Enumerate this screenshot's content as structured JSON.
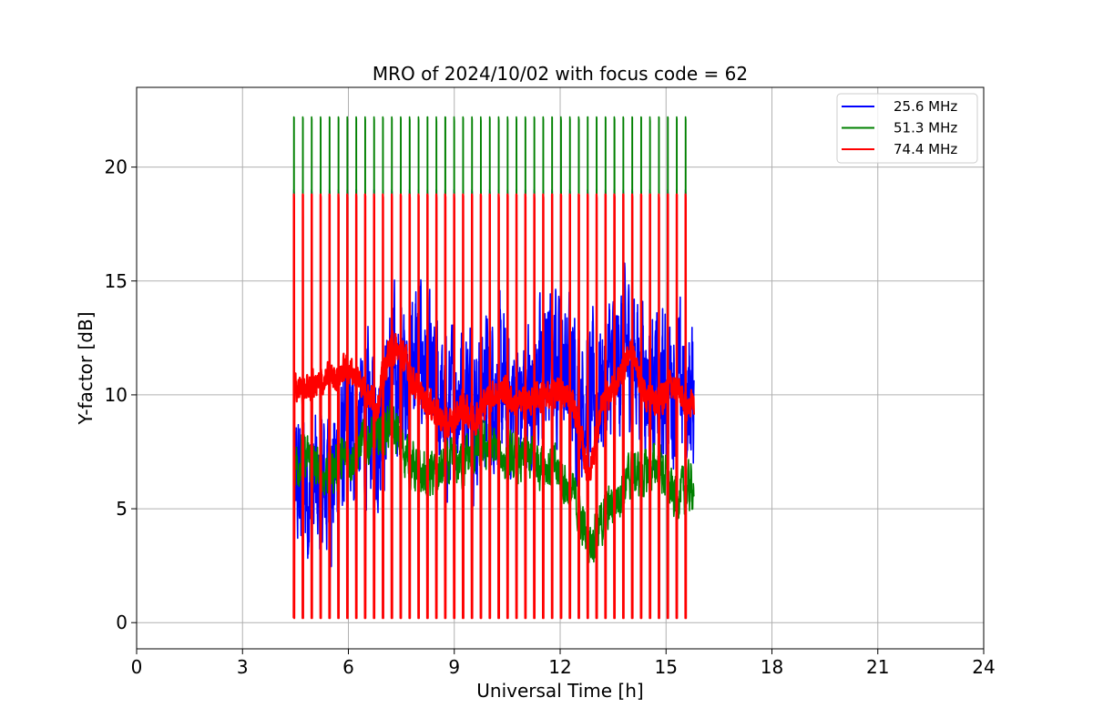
{
  "chart_data": {
    "type": "line",
    "title": "MRO of 2024/10/02 with focus code = 62",
    "xlabel": "Universal Time [h]",
    "ylabel": "Y-factor [dB]",
    "xlim": [
      0,
      24
    ],
    "ylim": [
      -1.15,
      23.5
    ],
    "x_ticks": [
      0,
      3,
      6,
      9,
      12,
      15,
      18,
      21,
      24
    ],
    "y_ticks": [
      0,
      5,
      10,
      15,
      20
    ],
    "grid": true,
    "legend_position": "top-right",
    "data_start_hour": 4.45,
    "data_end_hour": 15.8,
    "calibration_cycle_count": 45,
    "series": [
      {
        "name": "25.6 MHz",
        "color": "#0000ff",
        "baseline": {
          "x": [
            4.45,
            4.8,
            5.2,
            5.6,
            6.0,
            6.4,
            6.8,
            7.2,
            7.6,
            8.0,
            8.4,
            8.8,
            9.2,
            9.6,
            10.0,
            10.4,
            10.8,
            11.2,
            11.6,
            12.0,
            12.4,
            12.8,
            13.2,
            13.6,
            14.0,
            14.4,
            14.8,
            15.2,
            15.6,
            15.8
          ],
          "y": [
            5.8,
            6.0,
            5.8,
            6.5,
            8.0,
            9.0,
            8.5,
            10.5,
            11.0,
            12.0,
            10.0,
            9.0,
            10.5,
            9.5,
            10.5,
            10.0,
            9.5,
            10.0,
            11.0,
            12.0,
            10.5,
            9.5,
            10.5,
            11.5,
            12.0,
            11.0,
            10.0,
            10.5,
            10.0,
            10.0
          ]
        },
        "noise_amplitude": 2.5,
        "cal_high": 19.0,
        "cal_low": 0.2
      },
      {
        "name": "51.3 MHz",
        "color": "#008000",
        "baseline": {
          "x": [
            4.45,
            4.8,
            5.2,
            5.6,
            6.0,
            6.4,
            6.8,
            7.2,
            7.6,
            8.0,
            8.4,
            8.8,
            9.2,
            9.6,
            10.0,
            10.4,
            10.8,
            11.2,
            11.6,
            12.0,
            12.4,
            12.8,
            13.2,
            13.6,
            14.0,
            14.4,
            14.8,
            15.2,
            15.6,
            15.8
          ],
          "y": [
            7.0,
            7.2,
            6.5,
            6.8,
            7.2,
            7.8,
            8.2,
            8.8,
            7.5,
            6.5,
            6.5,
            6.8,
            7.0,
            7.5,
            7.8,
            7.2,
            7.0,
            7.2,
            7.0,
            6.5,
            5.5,
            3.5,
            4.5,
            5.5,
            6.5,
            6.5,
            7.0,
            5.5,
            5.8,
            6.2
          ]
        },
        "noise_amplitude": 0.8,
        "cal_high": 22.2,
        "cal_low": 5.2
      },
      {
        "name": "74.4 MHz",
        "color": "#ff0000",
        "baseline": {
          "x": [
            4.45,
            4.8,
            5.2,
            5.6,
            6.0,
            6.4,
            6.8,
            7.2,
            7.6,
            8.0,
            8.4,
            8.8,
            9.2,
            9.6,
            10.0,
            10.4,
            10.8,
            11.2,
            11.6,
            12.0,
            12.4,
            12.8,
            13.2,
            13.6,
            14.0,
            14.4,
            14.8,
            15.2,
            15.6,
            15.8
          ],
          "y": [
            10.3,
            10.2,
            10.5,
            10.8,
            11.2,
            10.5,
            9.5,
            12.2,
            11.5,
            10.0,
            9.5,
            8.5,
            9.5,
            9.0,
            10.0,
            10.2,
            9.5,
            9.8,
            10.0,
            10.2,
            9.5,
            6.5,
            9.5,
            10.5,
            12.0,
            10.0,
            9.8,
            10.5,
            9.5,
            9.5
          ]
        },
        "noise_amplitude": 0.5,
        "cal_high": 18.8,
        "cal_low": 0.2
      }
    ]
  }
}
